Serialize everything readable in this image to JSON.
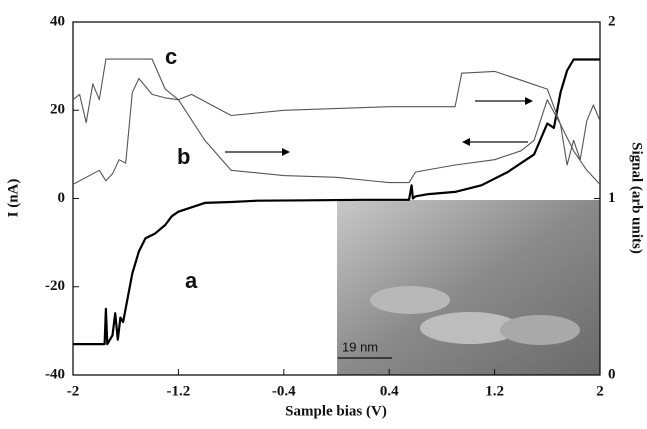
{
  "chart_data": {
    "type": "line",
    "x_label": "Sample bias (V)",
    "y_label": "I (nA)",
    "y2_label": "Signal (arb units)",
    "xlim": [
      -2,
      2
    ],
    "xticks": [
      -2,
      -1.2,
      -0.4,
      0.4,
      1.2,
      2
    ],
    "ylim": [
      -40,
      40
    ],
    "yticks": [
      -40,
      -20,
      0,
      20,
      40
    ],
    "y2lim": [
      0,
      2
    ],
    "y2ticks": [
      0,
      1,
      2
    ],
    "annotations": [
      "a",
      "b",
      "c",
      "19 nm"
    ],
    "series": [
      {
        "name": "a",
        "color": "#000000",
        "width": 2.2,
        "x": [
          -2,
          -1.76,
          -1.75,
          -1.74,
          -1.7,
          -1.68,
          -1.66,
          -1.64,
          -1.62,
          -1.55,
          -1.5,
          -1.45,
          -1.38,
          -1.3,
          -1.25,
          -1.2,
          -1.1,
          -1.0,
          -0.8,
          -0.6,
          -0.2,
          0.2,
          0.55,
          0.57,
          0.58,
          0.6,
          0.7,
          0.9,
          1.1,
          1.3,
          1.45,
          1.5,
          1.6,
          1.65,
          1.7,
          1.75,
          1.8,
          2
        ],
        "values": [
          -33,
          -33,
          -25,
          -33,
          -31,
          -26,
          -32,
          -27,
          -28,
          -17,
          -12,
          -9,
          -8,
          -6,
          -4,
          -3,
          -2,
          -1,
          -0.8,
          -0.5,
          -0.4,
          -0.3,
          -0.3,
          3,
          0,
          0.5,
          1,
          1.5,
          3,
          6,
          9,
          10,
          17,
          16,
          24,
          29,
          31.5,
          31.5
        ]
      },
      {
        "name": "b",
        "color": "#555555",
        "width": 1.1,
        "axis": "y2",
        "x": [
          -2,
          -1.9,
          -1.8,
          -1.75,
          -1.7,
          -1.65,
          -1.6,
          -1.55,
          -1.5,
          -1.4,
          -1.3,
          -1.2,
          -1.0,
          -0.8,
          -0.4,
          0,
          0.4,
          0.55,
          0.6,
          0.9,
          1.2,
          1.4,
          1.5,
          1.6,
          1.7,
          1.75,
          1.8,
          1.85,
          1.9,
          1.95,
          2
        ],
        "values": [
          1.08,
          1.12,
          1.16,
          1.1,
          1.14,
          1.22,
          1.2,
          1.6,
          1.68,
          1.59,
          1.57,
          1.56,
          1.33,
          1.16,
          1.13,
          1.12,
          1.09,
          1.09,
          1.15,
          1.19,
          1.22,
          1.27,
          1.33,
          1.56,
          1.42,
          1.19,
          1.33,
          1.22,
          1.44,
          1.53,
          1.44
        ]
      },
      {
        "name": "c",
        "color": "#555555",
        "width": 1.1,
        "axis": "y2",
        "x": [
          -2,
          -1.95,
          -1.9,
          -1.85,
          -1.8,
          -1.75,
          -1.4,
          -1.3,
          -1.2,
          -1.1,
          -0.8,
          -0.4,
          0.4,
          0.9,
          0.95,
          1.2,
          1.4,
          1.6,
          1.7,
          1.8,
          1.9,
          2
        ],
        "values": [
          1.56,
          1.59,
          1.43,
          1.65,
          1.56,
          1.79,
          1.79,
          1.62,
          1.56,
          1.59,
          1.47,
          1.5,
          1.52,
          1.52,
          1.71,
          1.72,
          1.67,
          1.62,
          1.42,
          1.27,
          1.16,
          1.08
        ]
      }
    ]
  }
}
